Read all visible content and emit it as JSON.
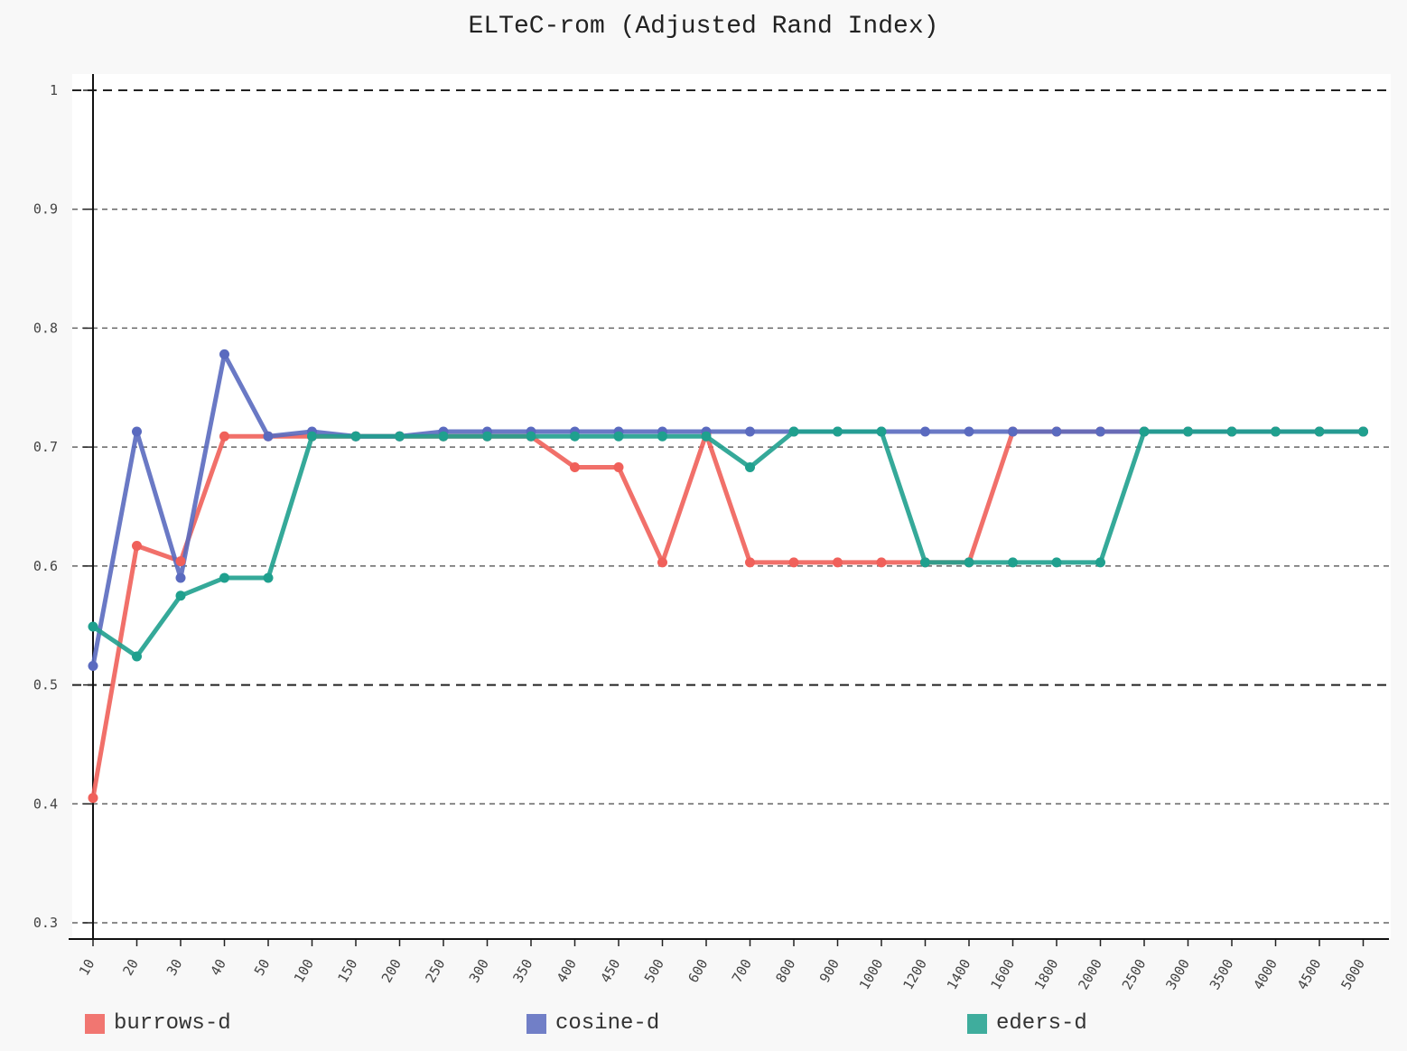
{
  "chart_data": {
    "type": "line",
    "title": "ELTeC-rom (Adjusted Rand Index)",
    "xlabel": "",
    "ylabel": "",
    "ylim": [
      0.3,
      1.0
    ],
    "yticks": [
      "1",
      "0.9",
      "0.8",
      "0.7",
      "0.6",
      "0.5",
      "0.4",
      "0.3"
    ],
    "ytick_values": [
      1.0,
      0.9,
      0.8,
      0.7,
      0.6,
      0.5,
      0.4,
      0.3
    ],
    "x": [
      "10",
      "20",
      "30",
      "40",
      "50",
      "100",
      "150",
      "200",
      "250",
      "300",
      "350",
      "400",
      "450",
      "500",
      "600",
      "700",
      "800",
      "900",
      "1000",
      "1200",
      "1400",
      "1600",
      "1800",
      "2000",
      "2500",
      "3000",
      "3500",
      "4000",
      "4500",
      "5000"
    ],
    "grid": true,
    "legend_position": "bottom",
    "series": [
      {
        "name": "burrows-d",
        "color": "#f0605a",
        "values": [
          0.405,
          0.617,
          0.604,
          0.709,
          0.709,
          0.709,
          0.709,
          0.709,
          0.709,
          0.709,
          0.709,
          0.683,
          0.683,
          0.603,
          0.711,
          0.603,
          0.603,
          0.603,
          0.603,
          0.603,
          0.603,
          0.713,
          0.713,
          0.713,
          0.713,
          0.713,
          0.713,
          0.713,
          0.713,
          0.713
        ]
      },
      {
        "name": "cosine-d",
        "color": "#5a6abf",
        "values": [
          0.516,
          0.713,
          0.59,
          0.778,
          0.709,
          0.713,
          0.709,
          0.709,
          0.713,
          0.713,
          0.713,
          0.713,
          0.713,
          0.713,
          0.713,
          0.713,
          0.713,
          0.713,
          0.713,
          0.713,
          0.713,
          0.713,
          0.713,
          0.713,
          0.713,
          0.713,
          0.713,
          0.713,
          0.713,
          0.713
        ]
      },
      {
        "name": "eders-d",
        "color": "#1fa08e",
        "values": [
          0.549,
          0.524,
          0.575,
          0.59,
          0.59,
          0.709,
          0.709,
          0.709,
          0.709,
          0.709,
          0.709,
          0.709,
          0.709,
          0.709,
          0.709,
          0.683,
          0.713,
          0.713,
          0.713,
          0.603,
          0.603,
          0.603,
          0.603,
          0.603,
          0.713,
          0.713,
          0.713,
          0.713,
          0.713,
          0.713
        ]
      }
    ]
  }
}
